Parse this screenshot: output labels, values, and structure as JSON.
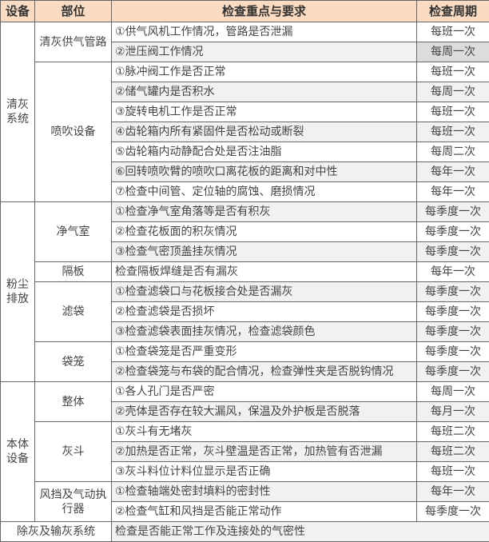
{
  "headers": [
    "设备",
    "部位",
    "检查重点与要求",
    "检查周期"
  ],
  "groups": [
    {
      "equipment": "清灰系统",
      "parts": [
        {
          "part": "清灰供气管路",
          "rows": [
            {
              "item": "①供气风机工作情况，管路是否泄漏",
              "period": "每班一次"
            },
            {
              "item": "②泄压阀工作情况",
              "period": "每周一次"
            }
          ]
        },
        {
          "part": "喷吹设备",
          "rows": [
            {
              "item": "①脉冲阀工作是否正常",
              "period": "每班一次"
            },
            {
              "item": "②储气罐内是否积水",
              "period": "每周一次"
            },
            {
              "item": "③旋转电机工作是否正常",
              "period": "每班一次"
            },
            {
              "item": "④齿轮箱内所有紧固件是否松动或断裂",
              "period": "每班一次"
            },
            {
              "item": "⑤齿轮箱内动静配合处是否注油脂",
              "period": "每周二次"
            },
            {
              "item": "⑥回转喷吹臂的喷吹口离花板的距离和对中性",
              "period": "每年一次"
            },
            {
              "item": "⑦检查中间管、定位轴的腐蚀、磨损情况",
              "period": "每年一次"
            }
          ]
        }
      ]
    },
    {
      "equipment": "粉尘排放",
      "parts": [
        {
          "part": "净气室",
          "rows": [
            {
              "item": "①检查净气室角落等是否有积灰",
              "period": "每季度一次"
            },
            {
              "item": "②检查花板面的积灰情况",
              "period": "每季度一次"
            },
            {
              "item": "③检查气密顶盖挂灰情况",
              "period": "每季度一次"
            }
          ]
        },
        {
          "part": "隔板",
          "rows": [
            {
              "item": "检查隔板焊缝是否有漏灰",
              "period": "每年一次"
            }
          ]
        },
        {
          "part": "滤袋",
          "rows": [
            {
              "item": "①检查滤袋口与花板接合处是否漏灰",
              "period": "每季度一次"
            },
            {
              "item": "②检查滤袋是否损坏",
              "period": "每季度一次"
            },
            {
              "item": "③检查滤袋表面挂灰情况，检查滤袋颜色",
              "period": "每季度一次"
            }
          ]
        },
        {
          "part": "袋笼",
          "rows": [
            {
              "item": "①检查袋笼是否严重变形",
              "period": "每季度一次"
            },
            {
              "item": "②检查袋笼与布袋的配合情况，检查弹性夹是否脱钩情况",
              "period": "每季度一次"
            }
          ]
        }
      ]
    },
    {
      "equipment": "本体设备",
      "parts": [
        {
          "part": "整体",
          "rows": [
            {
              "item": "①各人孔门是否严密",
              "period": "每周一次"
            },
            {
              "item": "②壳体是否存在较大漏风，保温及外护板是否脱落",
              "period": "每月一次"
            }
          ]
        },
        {
          "part": "灰斗",
          "rows": [
            {
              "item": "①灰斗有无堵灰",
              "period": "每班二次"
            },
            {
              "item": "②加热是否正常，灰斗壁温是否正常，加热管有否泄漏",
              "period": "每班二次"
            },
            {
              "item": "③灰斗料位计料位显示是否正确",
              "period": "每班一次"
            }
          ]
        },
        {
          "part": "风挡及气动执行器",
          "rows": [
            {
              "item": "①检查轴端处密封填料的密封性",
              "period": "每年一次"
            },
            {
              "item": "②检查气缸和风挡是否能正常动作",
              "period": "每季度一次"
            }
          ]
        }
      ]
    }
  ],
  "footer": {
    "equipment": "除灰及输灰系统",
    "item": "检查是否能正常工作及连接处的气密性"
  },
  "colors": {
    "header_bg": "#fbdcc2",
    "alt_row_bg": "#f1f1f1",
    "border": "#666666"
  }
}
